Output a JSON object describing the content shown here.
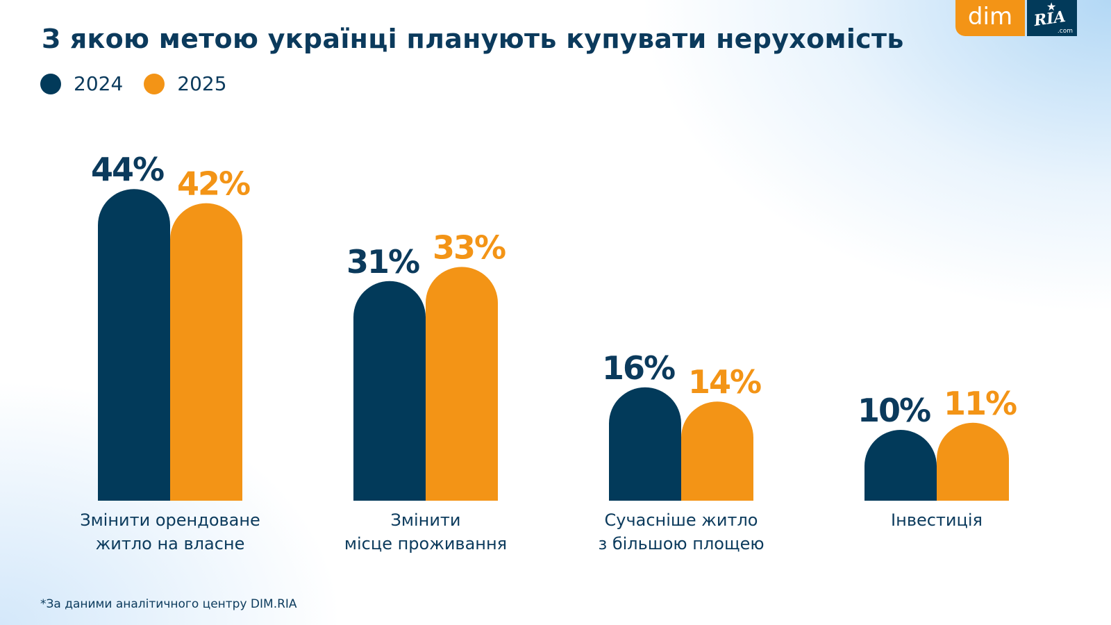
{
  "title": "З якою метою українці планують купувати нерухомість",
  "logo": {
    "left": "dim",
    "right": "RIA",
    "suffix": ".com"
  },
  "footnote": "*За даними аналітичного центру DIM.RIA",
  "colors": {
    "2024": "#023a5a",
    "2025": "#f39416",
    "text": "#0b3a5c"
  },
  "chart_data": {
    "type": "bar",
    "title": "З якою метою українці планують купувати нерухомість",
    "unit": "%",
    "legend_position": "top-left",
    "grid": false,
    "categories": [
      [
        "Змінити орендоване",
        "житло на власне"
      ],
      [
        "Змінити",
        "місце проживання"
      ],
      [
        "Сучасніше житло",
        "з більшою площею"
      ],
      [
        "Інвестиція"
      ]
    ],
    "series": [
      {
        "name": "2024",
        "values": [
          44,
          31,
          16,
          10
        ],
        "labels": [
          "44%",
          "31%",
          "16%",
          "10%"
        ]
      },
      {
        "name": "2025",
        "values": [
          42,
          33,
          14,
          11
        ],
        "labels": [
          "42%",
          "33%",
          "14%",
          "11%"
        ]
      }
    ]
  }
}
